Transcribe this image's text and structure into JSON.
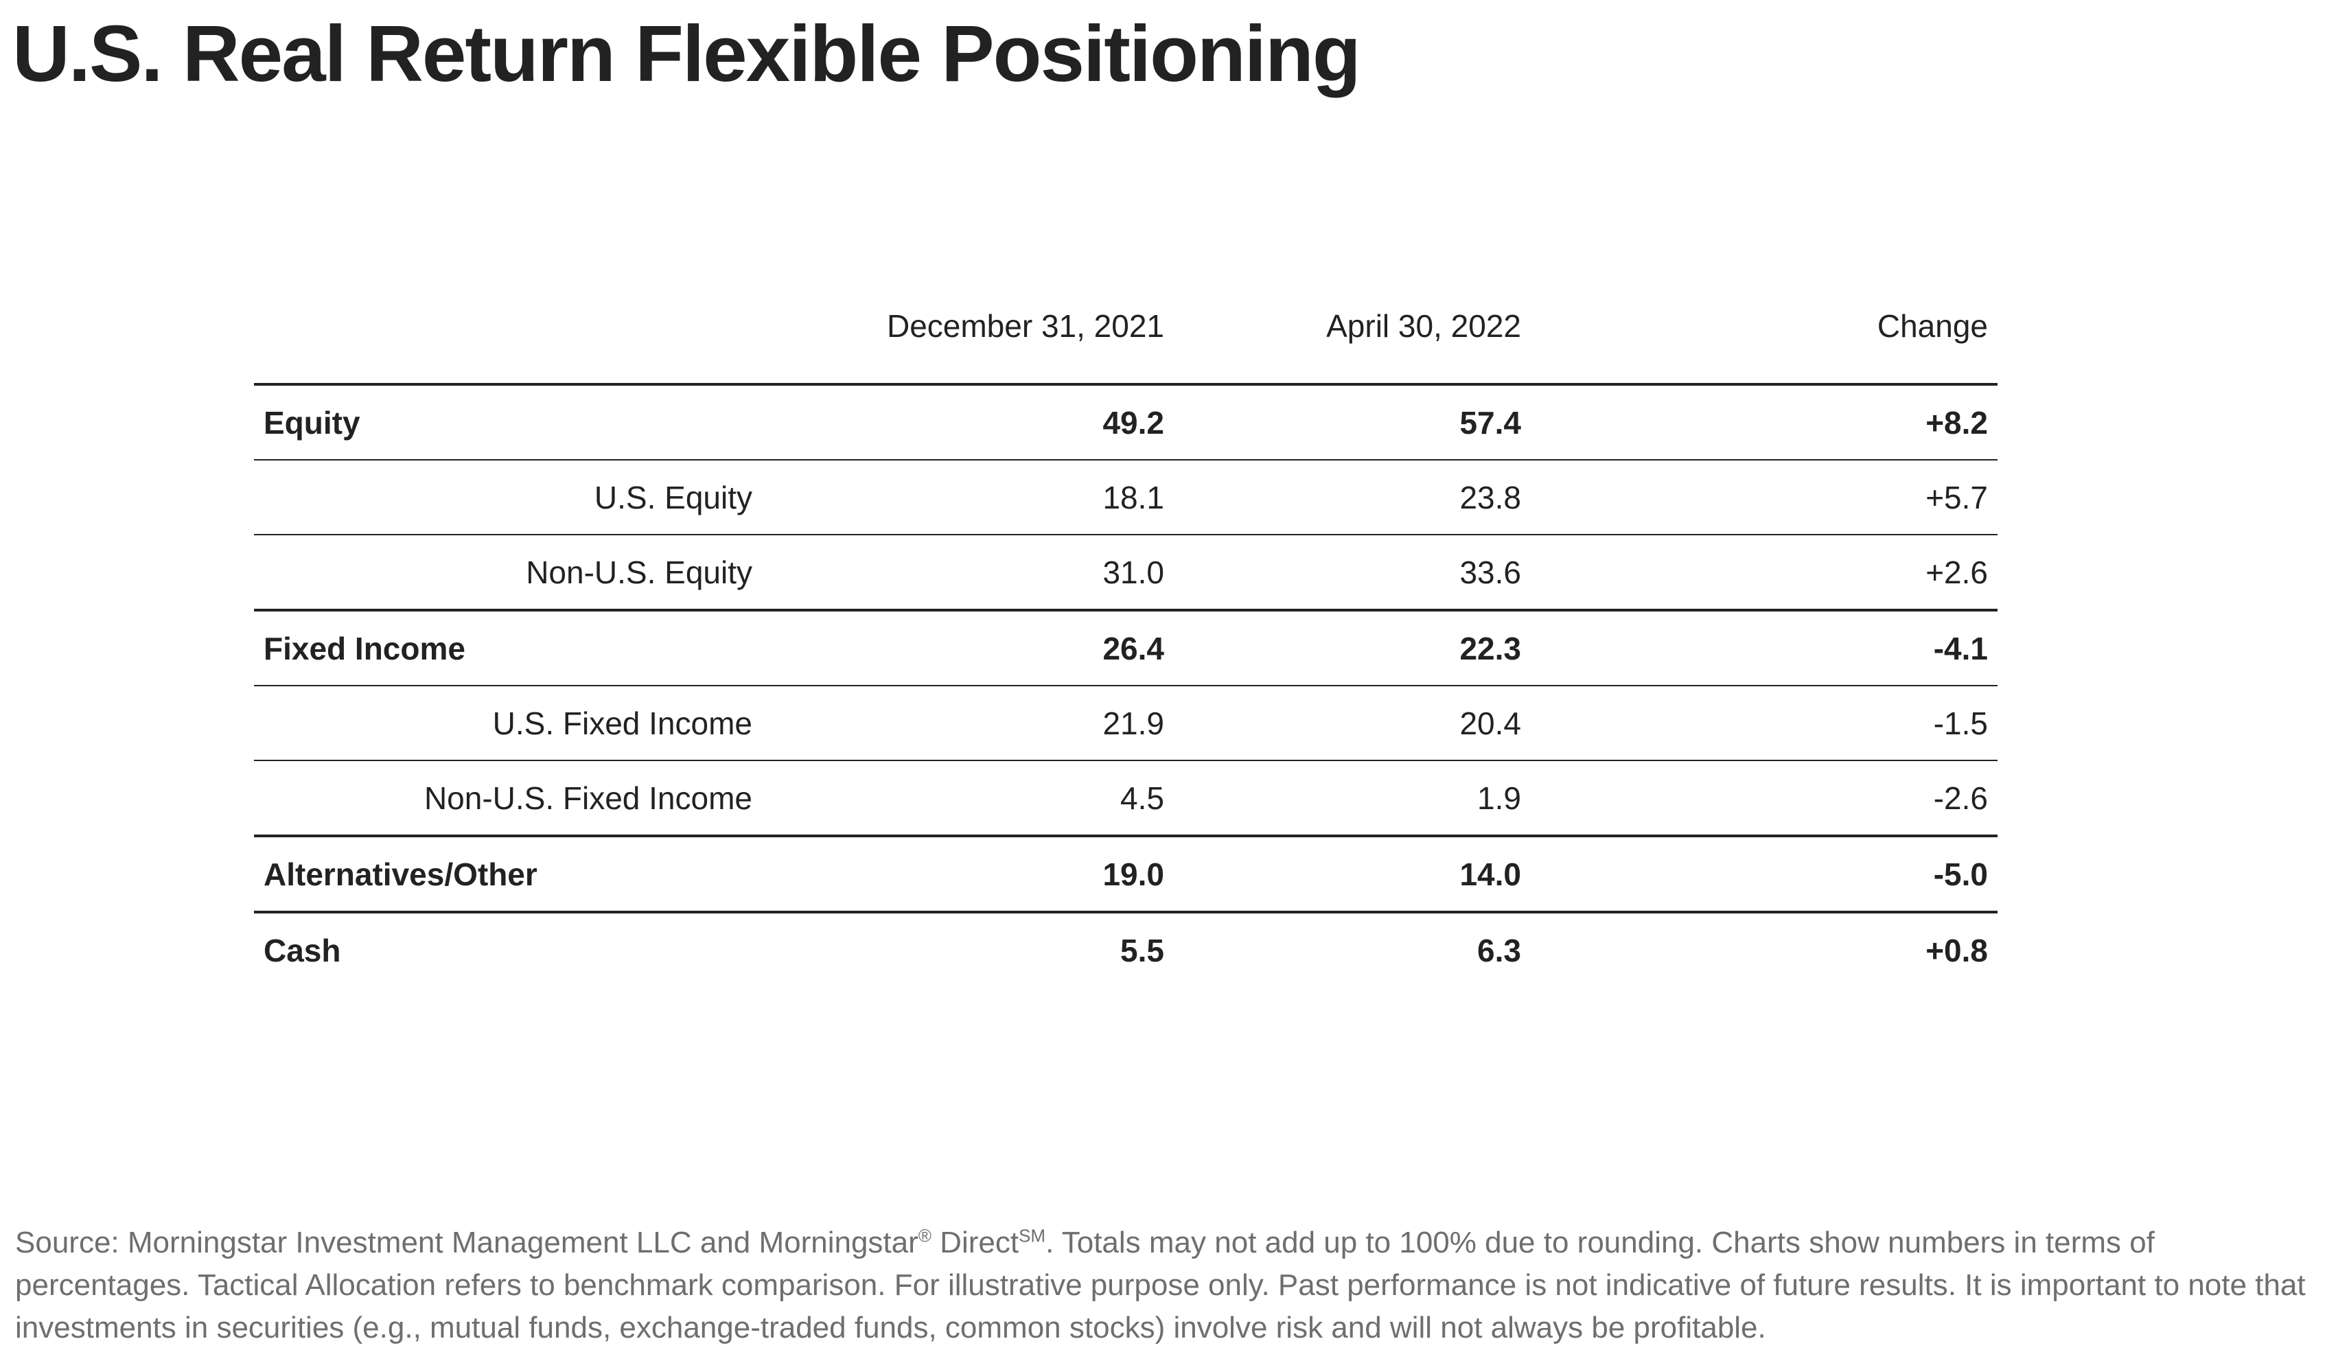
{
  "title": "U.S. Real Return Flexible Positioning",
  "chart_data": {
    "type": "table",
    "columns": [
      "",
      "December 31, 2021",
      "April 30, 2022",
      "Change"
    ],
    "rows": [
      {
        "label": "Equity",
        "level": "parent",
        "values": [
          "49.2",
          "57.4",
          "+8.2"
        ]
      },
      {
        "label": "U.S. Equity",
        "level": "child",
        "values": [
          "18.1",
          "23.8",
          "+5.7"
        ]
      },
      {
        "label": "Non-U.S. Equity",
        "level": "child",
        "values": [
          "31.0",
          "33.6",
          "+2.6"
        ]
      },
      {
        "label": "Fixed Income",
        "level": "parent",
        "values": [
          "26.4",
          "22.3",
          "-4.1"
        ]
      },
      {
        "label": "U.S. Fixed Income",
        "level": "child",
        "values": [
          "21.9",
          "20.4",
          "-1.5"
        ]
      },
      {
        "label": "Non-U.S. Fixed Income",
        "level": "child",
        "values": [
          "4.5",
          "1.9",
          "-2.6"
        ]
      },
      {
        "label": "Alternatives/Other",
        "level": "parent",
        "values": [
          "19.0",
          "14.0",
          "-5.0"
        ]
      },
      {
        "label": "Cash",
        "level": "parent",
        "values": [
          "5.5",
          "6.3",
          "+0.8"
        ]
      }
    ]
  },
  "source": {
    "part1": "Source: Morningstar Investment Management LLC and Morningstar",
    "registered": "®",
    "part2": " Direct",
    "service_mark": "SM",
    "part3": ". Totals may not add up to 100% due to rounding. Charts show numbers in terms of percentages. Tactical Allocation refers to benchmark comparison. For illustrative purpose only. Past performance is not indicative of future results. It is important to note that investments in securities (e.g., mutual funds, exchange-traded funds, common stocks) involve risk and will not always be profitable."
  },
  "colors": {
    "text": "#222222",
    "rule": "#222222",
    "source_text": "#6e6e6e"
  }
}
